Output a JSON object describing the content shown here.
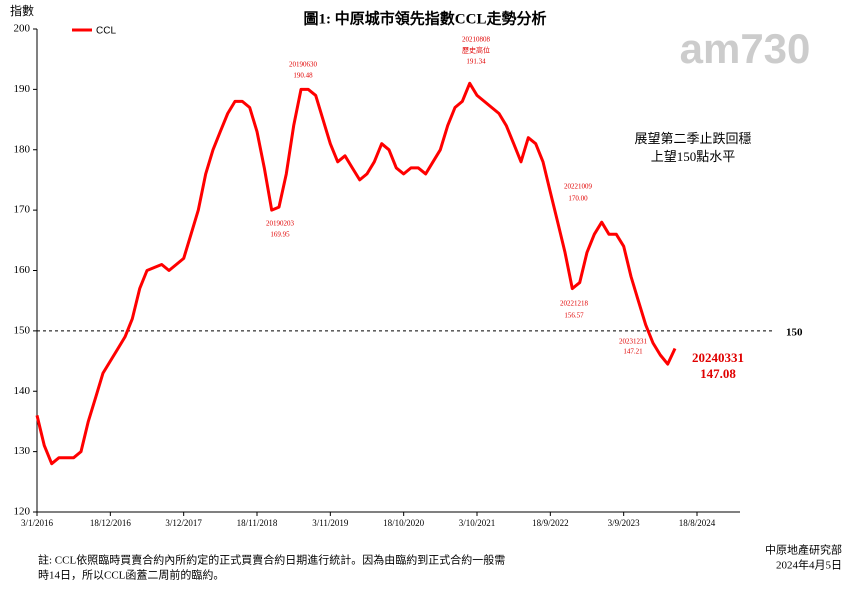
{
  "chart_data": {
    "type": "line",
    "title": "圖1: 中原城市領先指數CCL走勢分析",
    "y_label": "指數",
    "categories": [
      "3/1/2016",
      null,
      null,
      null,
      null,
      null,
      null,
      null,
      null,
      null,
      "18/12/2016",
      null,
      null,
      null,
      null,
      null,
      null,
      null,
      null,
      null,
      "3/12/2017",
      null,
      null,
      null,
      null,
      null,
      null,
      null,
      null,
      null,
      "18/11/2018",
      null,
      null,
      null,
      null,
      null,
      null,
      null,
      null,
      null,
      "3/11/2019",
      null,
      null,
      null,
      null,
      null,
      null,
      null,
      null,
      null,
      "18/10/2020",
      null,
      null,
      null,
      null,
      null,
      null,
      null,
      null,
      null,
      "3/10/2021",
      null,
      null,
      null,
      null,
      null,
      null,
      null,
      null,
      null,
      "18/9/2022",
      null,
      null,
      null,
      null,
      null,
      null,
      null,
      null,
      null,
      "3/9/2023",
      null,
      null,
      null,
      null,
      null,
      null,
      null,
      null,
      null,
      "18/8/2024",
      null,
      null,
      null,
      null,
      null
    ],
    "series": [
      {
        "name": "CCL",
        "color": "#ff0000",
        "values": [
          136,
          131,
          128,
          129,
          129,
          129,
          130,
          135,
          139,
          143,
          145,
          147,
          149,
          152,
          157,
          160,
          160.5,
          161,
          160,
          161,
          162,
          166,
          170,
          176,
          180,
          183,
          186,
          188,
          188,
          187,
          183,
          177,
          170,
          170.5,
          176,
          184,
          190,
          190,
          189,
          185,
          181,
          178,
          179,
          177,
          175,
          176,
          178,
          181,
          180,
          177,
          176,
          177,
          177,
          176,
          178,
          180,
          184,
          187,
          188,
          191,
          189,
          188,
          187,
          186,
          184,
          181,
          178,
          182,
          181,
          178,
          173,
          168,
          163,
          157,
          158,
          163,
          166,
          168,
          166,
          166,
          164,
          159,
          155,
          151,
          148,
          146,
          144.5,
          147.08,
          null,
          null,
          null,
          null,
          null,
          null,
          null,
          null
        ]
      }
    ],
    "ylim": [
      120,
      200
    ],
    "yticks": [
      120,
      130,
      140,
      150,
      160,
      170,
      180,
      190,
      200
    ],
    "reference_line": 150,
    "annotations": [
      {
        "lines": [
          "20190203",
          "169.95"
        ]
      },
      {
        "lines": [
          "20190630",
          "190.48"
        ]
      },
      {
        "lines": [
          "20210808",
          "歷史高位",
          "191.34"
        ]
      },
      {
        "lines": [
          "20221009",
          "170.00"
        ]
      },
      {
        "lines": [
          "20221218",
          "156.57"
        ]
      },
      {
        "lines": [
          "20231231",
          "147.21"
        ]
      },
      {
        "lines": [
          "20240331",
          "147.08"
        ]
      }
    ],
    "callout": [
      "展望第二季止跌回穩",
      "上望150點水平"
    ],
    "logo": "am730",
    "footnote": [
      "註: CCL依照臨時買賣合約內所約定的正式買賣合約日期進行統計。因為由臨約到正式合約一般需",
      "時14日，所以CCL函蓋二周前的臨約。"
    ],
    "source": "中原地產研究部",
    "date": "2024年4月5日"
  }
}
